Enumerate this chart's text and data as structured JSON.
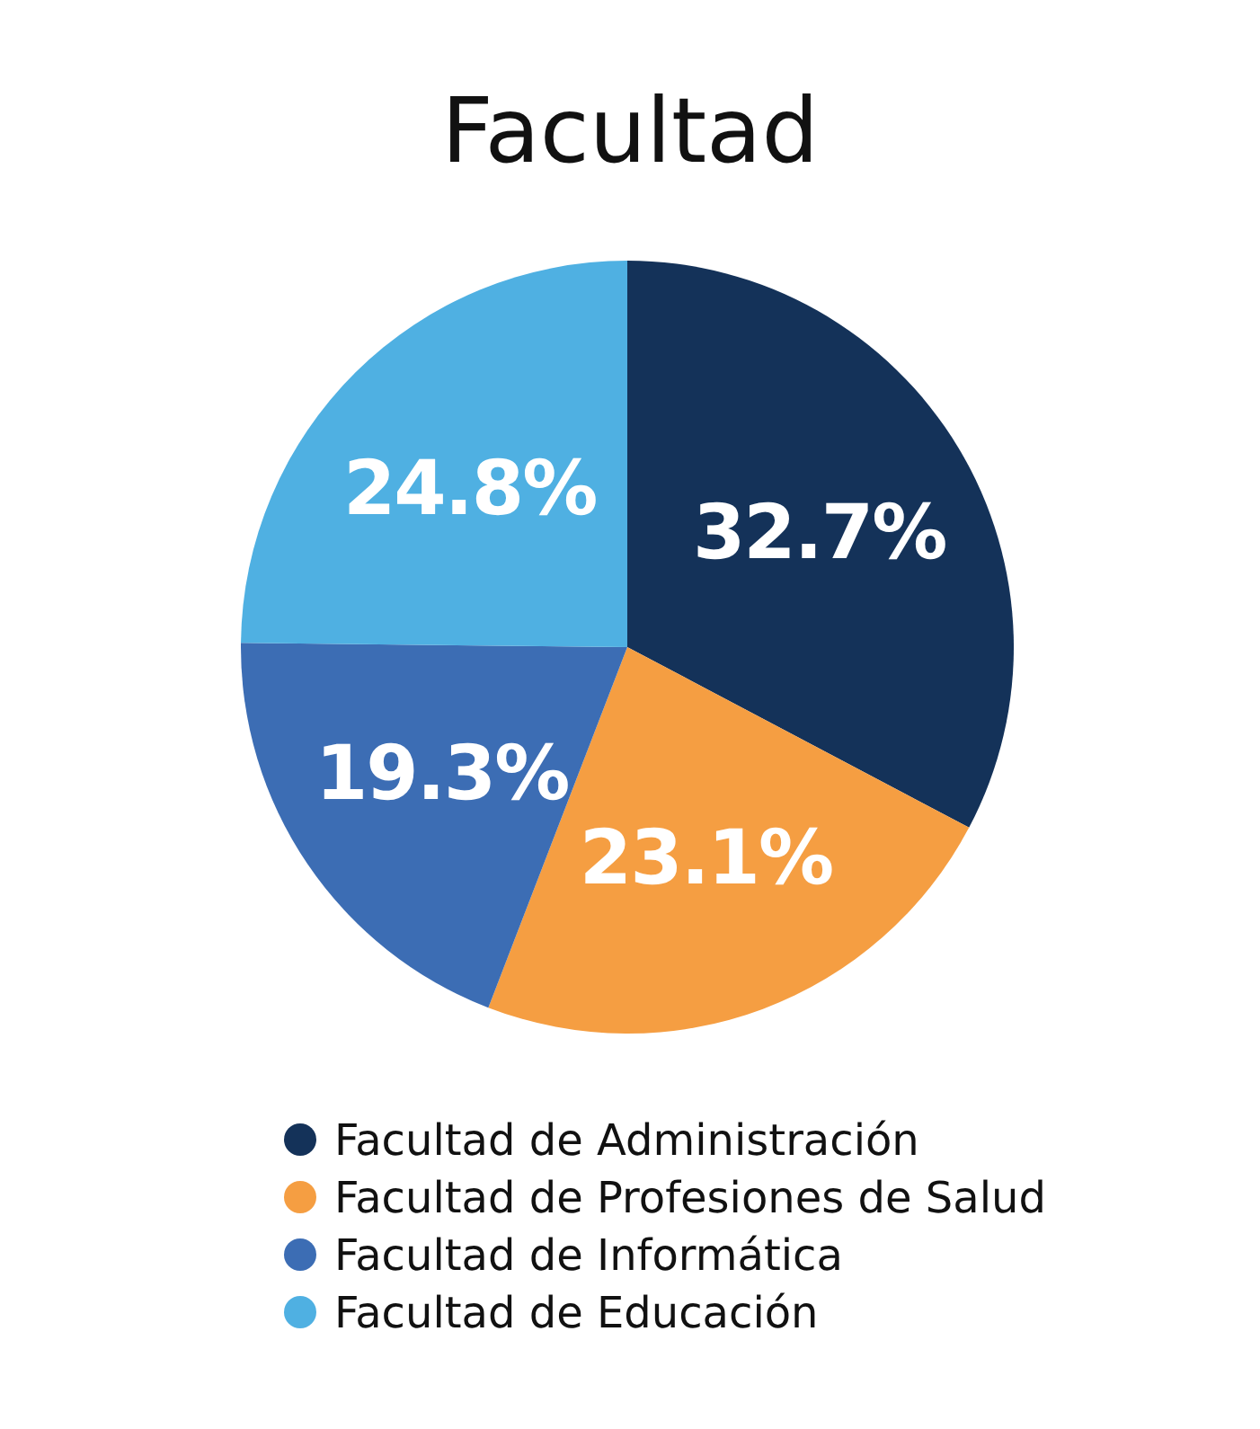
{
  "chart_data": {
    "type": "pie",
    "title": "Facultad",
    "categories": [
      "Facultad de Administración",
      "Facultad de Profesiones de Salud",
      "Facultad de Informática",
      "Facultad de Educación"
    ],
    "values": [
      32.7,
      23.1,
      19.3,
      24.8
    ],
    "colors": [
      "#143259",
      "#f59e42",
      "#3c6db4",
      "#4fb0e2"
    ],
    "value_labels": [
      "32.7%",
      "23.1%",
      "19.3%",
      "24.8%"
    ],
    "legend": "bottom"
  }
}
